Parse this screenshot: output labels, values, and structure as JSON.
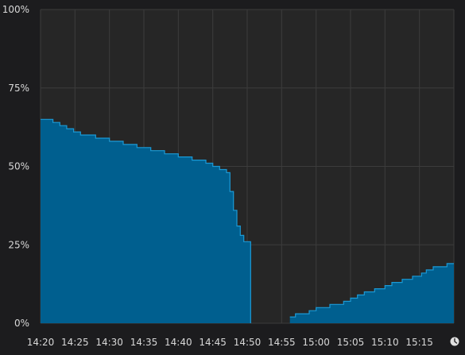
{
  "colors": {
    "background": "#1c1c1e",
    "plot_background": "#262626",
    "grid": "#3c3c3c",
    "fill": "#005f8f",
    "line": "#1b9ad6",
    "text": "#d8d8d8",
    "clock_icon": "#e0e0e0"
  },
  "icons": {
    "time_indicator": "clock-icon"
  },
  "chart_data": {
    "type": "area",
    "title": "",
    "xlabel": "",
    "ylabel": "",
    "ylim": [
      0,
      100
    ],
    "xlim": [
      "14:20",
      "15:20"
    ],
    "grid": true,
    "legend": "none",
    "y_ticks": [
      {
        "value": 0,
        "label": "0%"
      },
      {
        "value": 25,
        "label": "25%"
      },
      {
        "value": 50,
        "label": "50%"
      },
      {
        "value": 75,
        "label": "75%"
      },
      {
        "value": 100,
        "label": "100%"
      }
    ],
    "x_ticks": [
      {
        "minute": 0,
        "label": "14:20"
      },
      {
        "minute": 5,
        "label": "14:25"
      },
      {
        "minute": 10,
        "label": "14:30"
      },
      {
        "minute": 15,
        "label": "14:35"
      },
      {
        "minute": 20,
        "label": "14:40"
      },
      {
        "minute": 25,
        "label": "14:45"
      },
      {
        "minute": 30,
        "label": "14:50"
      },
      {
        "minute": 35,
        "label": "14:55"
      },
      {
        "minute": 40,
        "label": "15:00"
      },
      {
        "minute": 45,
        "label": "15:05"
      },
      {
        "minute": 50,
        "label": "15:10"
      },
      {
        "minute": 55,
        "label": "15:15"
      }
    ],
    "segments": [
      {
        "points": [
          [
            0,
            65
          ],
          [
            1.8,
            64
          ],
          [
            2.8,
            63
          ],
          [
            3.8,
            62
          ],
          [
            4.8,
            61
          ],
          [
            5.8,
            60
          ],
          [
            8,
            59
          ],
          [
            10,
            58
          ],
          [
            12,
            57
          ],
          [
            14,
            56
          ],
          [
            16,
            55
          ],
          [
            18,
            54
          ],
          [
            20,
            53
          ],
          [
            22,
            52
          ],
          [
            24,
            51
          ],
          [
            25,
            50
          ],
          [
            26,
            49
          ],
          [
            27,
            48
          ],
          [
            27.5,
            42
          ],
          [
            28,
            36
          ],
          [
            28.5,
            31
          ],
          [
            29,
            28
          ],
          [
            29.5,
            26
          ],
          [
            30.5,
            0
          ]
        ]
      },
      {
        "points": [
          [
            36.2,
            2
          ],
          [
            37,
            3
          ],
          [
            39,
            4
          ],
          [
            40,
            5
          ],
          [
            42,
            6
          ],
          [
            44,
            7
          ],
          [
            45,
            8
          ],
          [
            46,
            9
          ],
          [
            47,
            10
          ],
          [
            48.5,
            11
          ],
          [
            50,
            12
          ],
          [
            51,
            13
          ],
          [
            52.5,
            14
          ],
          [
            54,
            15
          ],
          [
            55.3,
            16
          ],
          [
            56,
            17
          ],
          [
            57,
            18
          ],
          [
            59,
            19
          ],
          [
            60,
            19
          ]
        ]
      }
    ]
  }
}
